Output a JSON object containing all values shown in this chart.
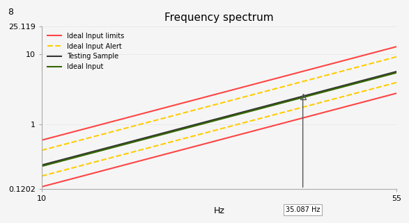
{
  "title": "Frequency spectrum",
  "xlabel": "Hz",
  "xlim_log": [
    10,
    55
  ],
  "ylim_log": [
    0.1202,
    25.119
  ],
  "yticks": [
    0.1202,
    1,
    10,
    25.119
  ],
  "ytick_labels": [
    "0.1202",
    "1",
    "10",
    "25.119"
  ],
  "xticks": [
    10,
    55
  ],
  "xtick_labels": [
    "10",
    "55"
  ],
  "extra_ytick": 8,
  "annotation_freq": 35.087,
  "annotation_label": "35.087 Hz",
  "background_color": "#f5f5f5",
  "grid_color": "#cccccc",
  "lines": [
    {
      "label": "Ideal Input limits",
      "color": "#ff4444",
      "linestyle": "solid",
      "linewidth": 1.5,
      "a": 0.13,
      "b": 1.8
    },
    {
      "label": "Ideal Input limits",
      "color": "#ff4444",
      "linestyle": "solid",
      "linewidth": 1.5,
      "a": 0.6,
      "b": 1.8
    },
    {
      "label": "Ideal Input Alert",
      "color": "#ffcc00",
      "linestyle": "dashed",
      "linewidth": 1.5,
      "a": 0.185,
      "b": 1.8
    },
    {
      "label": "Ideal Input Alert",
      "color": "#ffcc00",
      "linestyle": "dashed",
      "linewidth": 1.5,
      "a": 0.43,
      "b": 1.8
    },
    {
      "label": "Testing Sample",
      "color": "#333333",
      "linestyle": "solid",
      "linewidth": 1.5,
      "a": 0.265,
      "b": 1.8
    },
    {
      "label": "Ideal Input",
      "color": "#336600",
      "linestyle": "solid",
      "linewidth": 1.5,
      "a": 0.255,
      "b": 1.8
    }
  ]
}
